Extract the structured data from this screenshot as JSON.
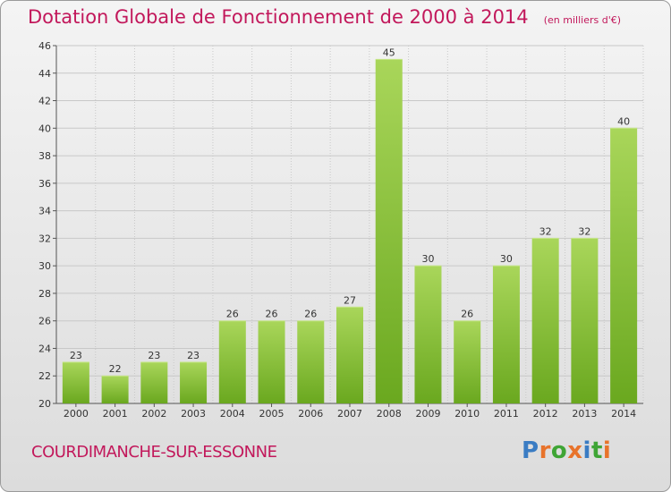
{
  "title": "Dotation Globale de Fonctionnement de 2000 à 2014",
  "subtitle": "(en milliers d'€)",
  "commune": "COURDIMANCHE-SUR-ESSONNE",
  "brand": {
    "letters": [
      "P",
      "r",
      "o",
      "x",
      "i",
      "t",
      "i"
    ],
    "colors": [
      "#3a7cc3",
      "#e8732b",
      "#3fa535",
      "#e8732b",
      "#3a7cc3",
      "#3fa535",
      "#e8732b"
    ]
  },
  "colors": {
    "title": "#c2185b",
    "bar_light": "#a9d65a",
    "bar_dark": "#6aa81f",
    "grid": "#c8c8c8"
  },
  "chart_data": {
    "type": "bar",
    "title": "Dotation Globale de Fonctionnement de 2000 à 2014",
    "xlabel": "",
    "ylabel": "",
    "categories": [
      "2000",
      "2001",
      "2002",
      "2003",
      "2004",
      "2005",
      "2006",
      "2007",
      "2008",
      "2009",
      "2010",
      "2011",
      "2012",
      "2013",
      "2014"
    ],
    "values": [
      23,
      22,
      23,
      23,
      26,
      26,
      26,
      27,
      45,
      30,
      26,
      30,
      32,
      32,
      40
    ],
    "ylim": [
      20,
      46
    ],
    "yticks": [
      20,
      22,
      24,
      26,
      28,
      30,
      32,
      34,
      36,
      38,
      40,
      42,
      44,
      46
    ],
    "grid": true
  }
}
